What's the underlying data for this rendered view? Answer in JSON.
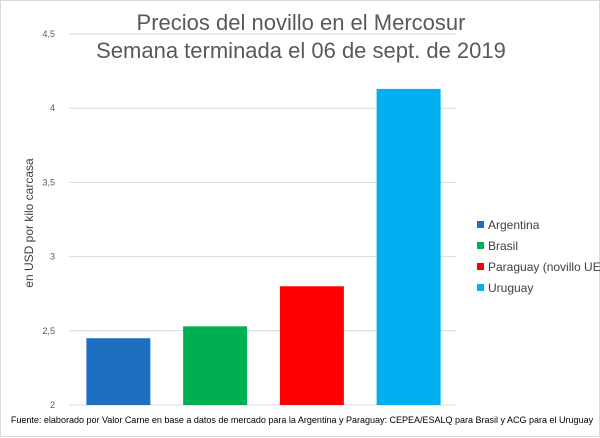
{
  "colors": {
    "argentina": "#1F6FC0",
    "brasil": "#00B050",
    "paraguay": "#FF0000",
    "uruguay": "#00B0F0",
    "grid": "#D9D9D9",
    "tick_text": "#595959"
  },
  "chart_data": {
    "type": "bar",
    "title": [
      "Precios del novillo en el Mercosur",
      "Semana terminada el 06 de sept. de 2019"
    ],
    "ylabel": "en USD por kilo carcasa",
    "ylim": [
      2,
      4.5
    ],
    "yticks": [
      {
        "value": 2,
        "label": "2"
      },
      {
        "value": 2.5,
        "label": "2,5"
      },
      {
        "value": 3,
        "label": "3"
      },
      {
        "value": 3.5,
        "label": "3,5"
      },
      {
        "value": 4,
        "label": "4"
      },
      {
        "value": 4.5,
        "label": "4,5"
      }
    ],
    "grid": true,
    "legend_position": "right",
    "series": [
      {
        "name": "Argentina",
        "value": 2.45,
        "color": "#1F6FC0"
      },
      {
        "name": "Brasil",
        "value": 2.53,
        "color": "#00B050"
      },
      {
        "name": "Paraguay (novillo UE)",
        "value": 2.8,
        "color": "#FF0000"
      },
      {
        "name": "Uruguay",
        "value": 4.13,
        "color": "#00B0F0"
      }
    ],
    "source": "Fuente: elaborado por Valor Carne en base a datos de mercado para la Argentina y Paraguay: CEPEA/ESALQ para Brasil y ACG para el Uruguay"
  }
}
